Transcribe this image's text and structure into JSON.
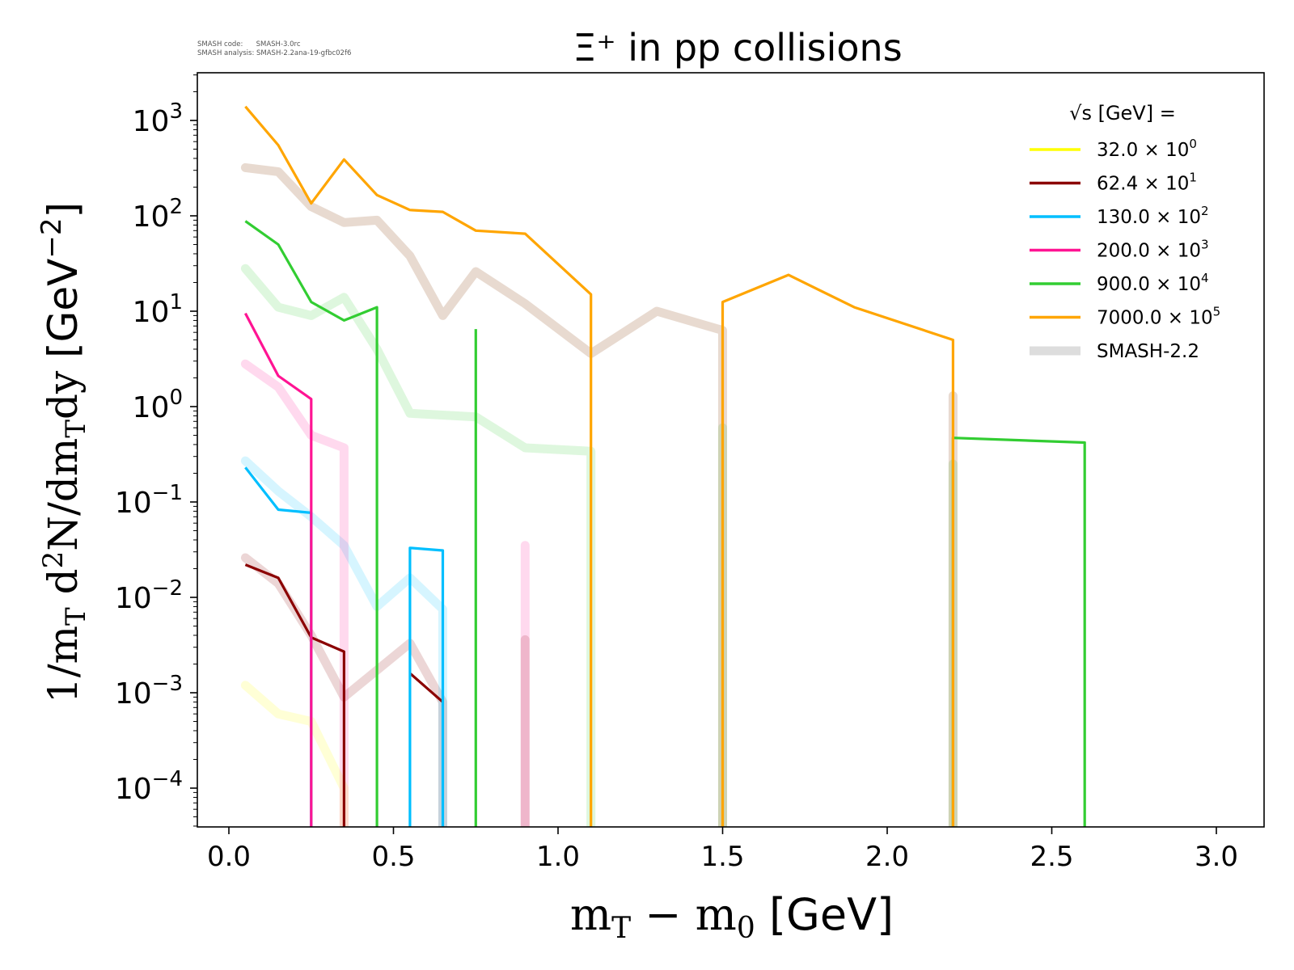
{
  "meta": {
    "line1": "SMASH code:      SMASH-3.0rc",
    "line2": "SMASH analysis: SMASH-2.2ana-19-gfbc02f6"
  },
  "chart_data": {
    "type": "line",
    "title": "Ξ⁺ in pp collisions",
    "xlabel": "m_T − m_0 [GeV]",
    "ylabel": "1/m_T d²N/dm_T dy [GeV⁻²]",
    "xlim": [
      -0.1,
      3.15
    ],
    "ylim": [
      3.8e-05,
      3200.0
    ],
    "yscale": "log",
    "grid": false,
    "x_ticks": [
      "0.0",
      "0.5",
      "1.0",
      "1.5",
      "2.0",
      "2.5",
      "3.0"
    ],
    "x_tick_values": [
      0.0,
      0.5,
      1.0,
      1.5,
      2.0,
      2.5,
      3.0
    ],
    "y_ticks": [
      {
        "base": "10",
        "exp": "3"
      },
      {
        "base": "10",
        "exp": "2"
      },
      {
        "base": "10",
        "exp": "1"
      },
      {
        "base": "10",
        "exp": "0"
      },
      {
        "base": "10",
        "exp": "−1"
      },
      {
        "base": "10",
        "exp": "−2"
      },
      {
        "base": "10",
        "exp": "−3"
      },
      {
        "base": "10",
        "exp": "−4"
      }
    ],
    "y_tick_values": [
      1000.0,
      100.0,
      10.0,
      1.0,
      0.1,
      0.01,
      0.001,
      0.0001
    ],
    "legend": {
      "title": "√s  [GeV] =",
      "placement": "top-right",
      "entries": [
        {
          "label": "32.0 × 10",
          "sup": "0",
          "color": "#ffff00"
        },
        {
          "label": "62.4 × 10",
          "sup": "1",
          "color": "#8b0000"
        },
        {
          "label": "130.0 × 10",
          "sup": "2",
          "color": "#00bfff"
        },
        {
          "label": "200.0 × 10",
          "sup": "3",
          "color": "#ff1493"
        },
        {
          "label": "900.0 × 10",
          "sup": "4",
          "color": "#32cd32"
        },
        {
          "label": "7000.0 × 10",
          "sup": "5",
          "color": "#ffa500"
        },
        {
          "label": "SMASH-2.2",
          "sup": "",
          "color": "#dddddd"
        }
      ]
    },
    "series": [
      {
        "name": "32.0 x 10^0 (data)",
        "color": "#ffff00",
        "kind": "data",
        "x": [
          0.05,
          0.15,
          0.25
        ],
        "y": [
          0.0017,
          0.0006,
          0.0003
        ]
      },
      {
        "name": "62.4 x 10^1 (data)",
        "color": "#8b0000",
        "kind": "data",
        "x": [
          0.05,
          0.15,
          0.25,
          0.35,
          0.35,
          0.55,
          0.65
        ],
        "y": [
          0.022,
          0.016,
          0.0038,
          0.0027,
          0,
          null,
          null
        ],
        "segments": [
          {
            "x": [
              0.05,
              0.15,
              0.25,
              0.35,
              0.35
            ],
            "y": [
              0.022,
              0.016,
              0.0038,
              0.0027,
              1e-06
            ]
          },
          {
            "x": [
              0.55,
              0.65
            ],
            "y": [
              0.0016,
              0.0008
            ]
          }
        ]
      },
      {
        "name": "130.0 x 10^2 (data)",
        "color": "#00bfff",
        "kind": "data",
        "segments": [
          {
            "x": [
              0.05,
              0.15,
              0.25,
              0.25
            ],
            "y": [
              0.23,
              0.083,
              0.077,
              1e-06
            ]
          },
          {
            "x": [
              0.55,
              0.55,
              0.65,
              0.65
            ],
            "y": [
              1e-06,
              0.033,
              0.031,
              1e-06
            ]
          }
        ]
      },
      {
        "name": "200.0 x 10^3 (data)",
        "color": "#ff1493",
        "kind": "data",
        "segments": [
          {
            "x": [
              0.05,
              0.15,
              0.25,
              0.25
            ],
            "y": [
              9.5,
              2.1,
              1.2,
              1e-06
            ]
          }
        ]
      },
      {
        "name": "900.0 x 10^4 (data)",
        "color": "#32cd32",
        "kind": "data",
        "segments": [
          {
            "x": [
              0.05,
              0.15,
              0.25,
              0.35,
              0.45,
              0.45
            ],
            "y": [
              88,
              50,
              12.5,
              8,
              11,
              1e-06
            ]
          },
          {
            "x": [
              0.75,
              0.75
            ],
            "y": [
              1e-06,
              6.5
            ]
          },
          {
            "x": [
              2.2,
              2.2,
              2.6,
              2.6
            ],
            "y": [
              1e-06,
              0.47,
              0.42,
              1e-06
            ]
          }
        ]
      },
      {
        "name": "7000.0 x 10^5 (data)",
        "color": "#ffa500",
        "kind": "data",
        "segments": [
          {
            "x": [
              0.05,
              0.15,
              0.25,
              0.35,
              0.45,
              0.55,
              0.65,
              0.75,
              0.9,
              1.1,
              1.1
            ],
            "y": [
              1400,
              550,
              135,
              390,
              165,
              115,
              110,
              70,
              65,
              15,
              1e-06
            ]
          },
          {
            "x": [
              1.5,
              1.5,
              1.7,
              1.9,
              2.2,
              2.2
            ],
            "y": [
              1e-06,
              12.5,
              24,
              11,
              5,
              1e-06
            ]
          }
        ]
      },
      {
        "name": "32.0 x 10^0 (SMASH-2.2)",
        "color": "#ffff00",
        "kind": "smash",
        "segments": [
          {
            "x": [
              0.05,
              0.15,
              0.25,
              0.35,
              0.35
            ],
            "y": [
              0.0012,
              0.0006,
              0.0005,
              0.0001,
              1e-06
            ]
          }
        ]
      },
      {
        "name": "62.4 x 10^1 (SMASH-2.2)",
        "color": "#8b0000",
        "kind": "smash",
        "segments": [
          {
            "x": [
              0.05,
              0.15,
              0.25,
              0.35,
              0.55,
              0.65,
              0.65
            ],
            "y": [
              0.026,
              0.014,
              0.004,
              0.0009,
              0.0033,
              0.0008,
              1e-06
            ]
          },
          {
            "x": [
              0.9,
              0.9
            ],
            "y": [
              0.0036,
              1e-06
            ]
          }
        ]
      },
      {
        "name": "130.0 x 10^2 (SMASH-2.2)",
        "color": "#00bfff",
        "kind": "smash",
        "segments": [
          {
            "x": [
              0.05,
              0.15,
              0.25,
              0.35,
              0.45,
              0.55,
              0.65,
              0.65
            ],
            "y": [
              0.27,
              0.13,
              0.07,
              0.035,
              0.008,
              0.016,
              0.0075,
              1e-06
            ]
          }
        ]
      },
      {
        "name": "200.0 x 10^3 (SMASH-2.2)",
        "color": "#ff1493",
        "kind": "smash",
        "segments": [
          {
            "x": [
              0.05,
              0.15,
              0.25,
              0.35,
              0.35
            ],
            "y": [
              2.8,
              1.6,
              0.5,
              0.37,
              1e-06
            ]
          },
          {
            "x": [
              0.9,
              0.9
            ],
            "y": [
              0.035,
              1e-06
            ]
          }
        ]
      },
      {
        "name": "900.0 x 10^4 (SMASH-2.2)",
        "color": "#32cd32",
        "kind": "smash",
        "segments": [
          {
            "x": [
              0.05,
              0.15,
              0.25,
              0.35,
              0.45,
              0.55,
              0.75,
              0.9,
              1.1,
              1.1
            ],
            "y": [
              28,
              11,
              9,
              14,
              4,
              0.85,
              0.78,
              0.37,
              0.34,
              1e-06
            ]
          },
          {
            "x": [
              1.5,
              1.5
            ],
            "y": [
              0.6,
              1e-06
            ]
          },
          {
            "x": [
              2.2,
              2.2
            ],
            "y": [
              0.25,
              1e-06
            ]
          }
        ]
      },
      {
        "name": "7000.0 x 10^5 (SMASH-2.2)",
        "color": "#8b4513",
        "kind": "smash",
        "segments": [
          {
            "x": [
              0.05,
              0.15,
              0.25,
              0.35,
              0.45,
              0.55,
              0.65,
              0.75,
              0.9,
              1.1,
              1.3,
              1.5,
              1.5
            ],
            "y": [
              320,
              290,
              125,
              85,
              90,
              38,
              9,
              26,
              12,
              3.6,
              10,
              6.3,
              1e-06
            ]
          },
          {
            "x": [
              2.2,
              2.2
            ],
            "y": [
              1.3,
              1e-06
            ]
          }
        ]
      }
    ]
  }
}
